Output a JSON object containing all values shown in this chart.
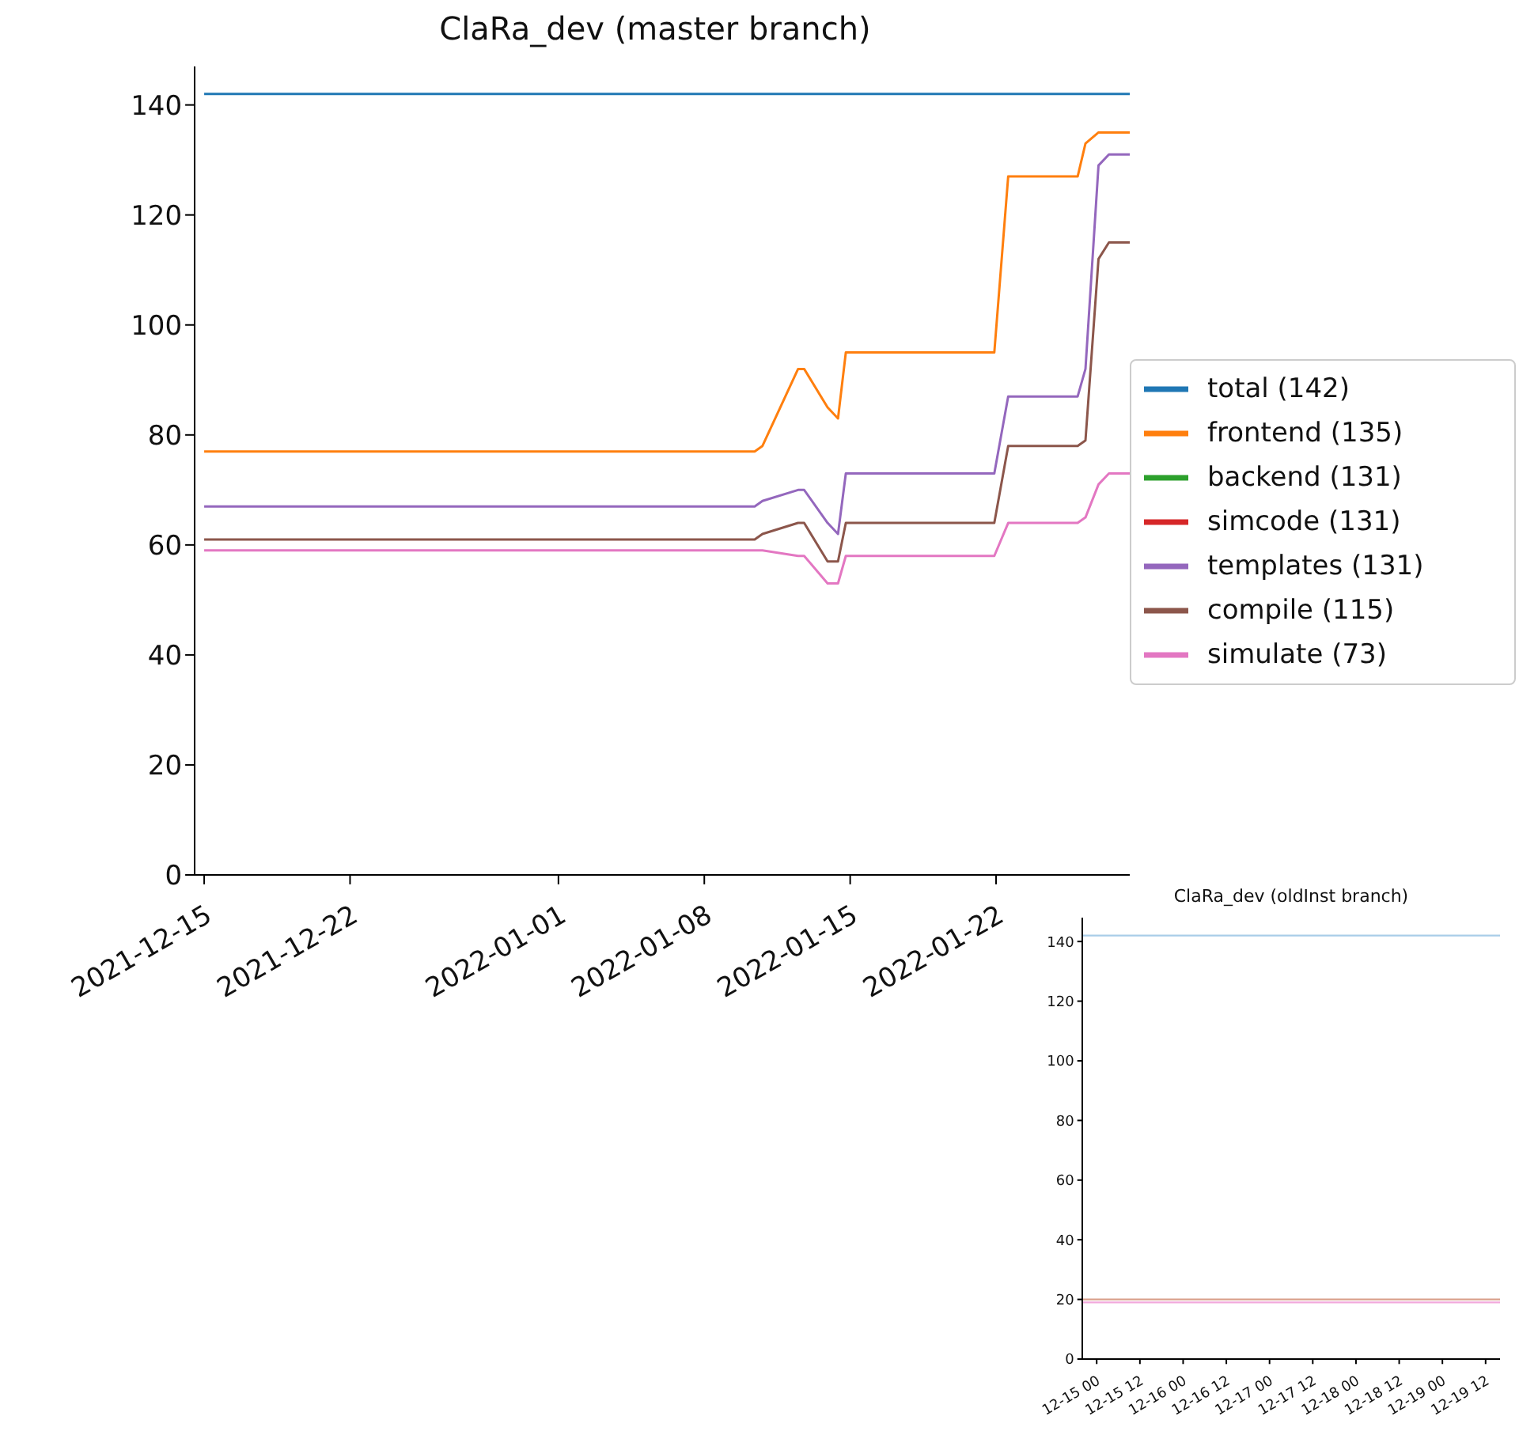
{
  "chart_data": [
    {
      "type": "line",
      "title": "ClaRa_dev (master branch)",
      "x": [
        "2021-12-15",
        "2022-01-10T10:00",
        "2022-01-10T19:00",
        "2022-01-12T12:00",
        "2022-01-12T19:00",
        "2022-01-13T22:00",
        "2022-01-14T10:00",
        "2022-01-14T19:00",
        "2022-01-21T22:00",
        "2022-01-22T14:00",
        "2022-01-25T22:00",
        "2022-01-26T07:00",
        "2022-01-26T22:00",
        "2022-01-27T10:00",
        "2022-01-28T10:00"
      ],
      "series": [
        {
          "name": "total (142)",
          "color": "#1f77b4",
          "values": [
            142,
            142,
            142,
            142,
            142,
            142,
            142,
            142,
            142,
            142,
            142,
            142,
            142,
            142,
            142
          ]
        },
        {
          "name": "frontend (135)",
          "color": "#ff7f0e",
          "values": [
            77,
            77,
            78,
            92,
            92,
            85,
            83,
            95,
            95,
            127,
            127,
            133,
            135,
            135,
            135
          ]
        },
        {
          "name": "backend (131)",
          "color": "#2ca02c",
          "values": [
            null,
            null,
            null,
            null,
            null,
            null,
            null,
            null,
            null,
            null,
            null,
            null,
            null,
            null,
            null
          ]
        },
        {
          "name": "simcode (131)",
          "color": "#d62728",
          "values": [
            null,
            null,
            null,
            null,
            null,
            null,
            null,
            null,
            null,
            null,
            null,
            null,
            null,
            null,
            null
          ]
        },
        {
          "name": "templates (131)",
          "color": "#9467bd",
          "values": [
            67,
            67,
            68,
            70,
            70,
            64,
            62,
            73,
            73,
            87,
            87,
            92,
            129,
            131,
            131
          ]
        },
        {
          "name": "compile (115)",
          "color": "#8c564b",
          "values": [
            61,
            61,
            62,
            64,
            64,
            57,
            57,
            64,
            64,
            78,
            78,
            79,
            112,
            115,
            115
          ]
        },
        {
          "name": "simulate (73)",
          "color": "#e377c2",
          "values": [
            59,
            59,
            59,
            58,
            58,
            53,
            53,
            58,
            58,
            64,
            64,
            65,
            71,
            73,
            73
          ]
        }
      ],
      "xlim": [
        "2021-12-14T13:00",
        "2022-01-28T10:00"
      ],
      "ylim": [
        0,
        147
      ],
      "xticks": [
        "2021-12-15",
        "2021-12-22",
        "2022-01-01",
        "2022-01-08",
        "2022-01-15",
        "2022-01-22"
      ],
      "yticks": [
        0,
        20,
        40,
        60,
        80,
        100,
        120,
        140
      ],
      "legend": "right"
    },
    {
      "type": "line",
      "title": "ClaRa_dev (oldInst branch)",
      "x": [
        "2021-12-14T20:00",
        "2021-12-19T16:00"
      ],
      "series": [
        {
          "color": "#a9cde8",
          "values": [
            142,
            142
          ]
        },
        {
          "color": "#d9a08c",
          "values": [
            20,
            20
          ]
        },
        {
          "color": "#f2a9dc",
          "values": [
            19,
            19
          ]
        }
      ],
      "xlim": [
        "2021-12-14T20:00",
        "2021-12-19T16:00"
      ],
      "ylim": [
        0,
        148
      ],
      "xticks": [
        {
          "value": "2021-12-15T00:00",
          "label": "12-15 00"
        },
        {
          "value": "2021-12-15T12:00",
          "label": "12-15 12"
        },
        {
          "value": "2021-12-16T00:00",
          "label": "12-16 00"
        },
        {
          "value": "2021-12-16T12:00",
          "label": "12-16 12"
        },
        {
          "value": "2021-12-17T00:00",
          "label": "12-17 00"
        },
        {
          "value": "2021-12-17T12:00",
          "label": "12-17 12"
        },
        {
          "value": "2021-12-18T00:00",
          "label": "12-18 00"
        },
        {
          "value": "2021-12-18T12:00",
          "label": "12-18 12"
        },
        {
          "value": "2021-12-19T00:00",
          "label": "12-19 00"
        },
        {
          "value": "2021-12-19T12:00",
          "label": "12-19 12"
        }
      ],
      "yticks": [
        0,
        20,
        40,
        60,
        80,
        100,
        120,
        140
      ]
    }
  ]
}
